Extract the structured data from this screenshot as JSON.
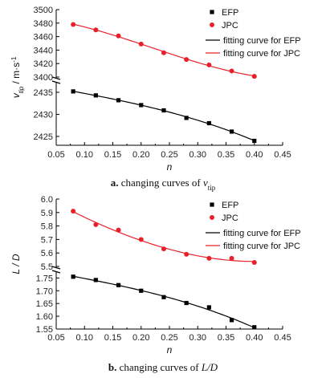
{
  "chart_data": [
    {
      "type": "scatter",
      "caption": {
        "letter": "a.",
        "text": "changing curves of",
        "var": "v",
        "sub": "tip"
      },
      "xlabel": "n",
      "ylabel": {
        "main": "v",
        "sub": "tip",
        "unit": " / m·s",
        "sup": "-1"
      },
      "xlim": [
        0.05,
        0.45
      ],
      "xticks": [
        "0.05",
        "0.10",
        "0.15",
        "0.20",
        "0.25",
        "0.30",
        "0.35",
        "0.40",
        "0.45"
      ],
      "upper": {
        "ylim": [
          3400,
          3500
        ],
        "yticks": [
          "3400",
          "3420",
          "3440",
          "3460",
          "3480",
          "3500"
        ]
      },
      "lower": {
        "ylim": [
          2423,
          2437
        ],
        "yticks": [
          "2425",
          "2430",
          "2435"
        ]
      },
      "legend": {
        "efp": "EFP",
        "jpc": "JPC",
        "fit_efp": "fitting curve for EFP",
        "fit_jpc": "fitting curve for JPC"
      },
      "series": [
        {
          "name": "EFP",
          "panel": "lower",
          "color": "#000000",
          "marker": "square",
          "x": [
            0.08,
            0.12,
            0.16,
            0.2,
            0.24,
            0.28,
            0.32,
            0.36,
            0.4
          ],
          "y": [
            2435.2,
            2434.3,
            2433.2,
            2432.1,
            2430.9,
            2429.2,
            2428.0,
            2426.1,
            2424.0
          ]
        },
        {
          "name": "JPC",
          "panel": "upper",
          "color": "#e8202a",
          "marker": "circle",
          "x": [
            0.08,
            0.12,
            0.16,
            0.2,
            0.24,
            0.28,
            0.32,
            0.36,
            0.4
          ],
          "y": [
            3478,
            3470,
            3461,
            3449,
            3436,
            3426,
            3418,
            3409,
            3401
          ]
        }
      ]
    },
    {
      "type": "scatter",
      "caption": {
        "letter": "b.",
        "text": "changing curves of",
        "var": "L/D",
        "sub": ""
      },
      "xlabel": "n",
      "ylabel": {
        "main": "L / D",
        "sub": "",
        "unit": "",
        "sup": ""
      },
      "xlim": [
        0.05,
        0.45
      ],
      "xticks": [
        "0.05",
        "0.10",
        "0.15",
        "0.20",
        "0.25",
        "0.30",
        "0.35",
        "0.40",
        "0.45"
      ],
      "upper": {
        "ylim": [
          5.5,
          6.0
        ],
        "yticks": [
          "5.5",
          "5.6",
          "5.7",
          "5.8",
          "5.9",
          "6.0"
        ]
      },
      "lower": {
        "ylim": [
          1.55,
          1.77
        ],
        "yticks": [
          "1.55",
          "1.60",
          "1.65",
          "1.70",
          "1.75"
        ]
      },
      "legend": {
        "efp": "EFP",
        "jpc": "JPC",
        "fit_efp": "fitting curve for EFP",
        "fit_jpc": "fitting curve for JPC"
      },
      "series": [
        {
          "name": "EFP",
          "panel": "lower",
          "color": "#000000",
          "marker": "square",
          "x": [
            0.08,
            0.12,
            0.16,
            0.2,
            0.24,
            0.28,
            0.32,
            0.36,
            0.4
          ],
          "y": [
            1.755,
            1.742,
            1.722,
            1.7,
            1.675,
            1.652,
            1.635,
            1.585,
            1.557
          ]
        },
        {
          "name": "JPC",
          "panel": "upper",
          "color": "#e8202a",
          "marker": "circle",
          "x": [
            0.08,
            0.12,
            0.16,
            0.2,
            0.24,
            0.28,
            0.32,
            0.36,
            0.4
          ],
          "y": [
            5.91,
            5.81,
            5.77,
            5.7,
            5.63,
            5.59,
            5.56,
            5.56,
            5.53
          ]
        }
      ]
    }
  ]
}
